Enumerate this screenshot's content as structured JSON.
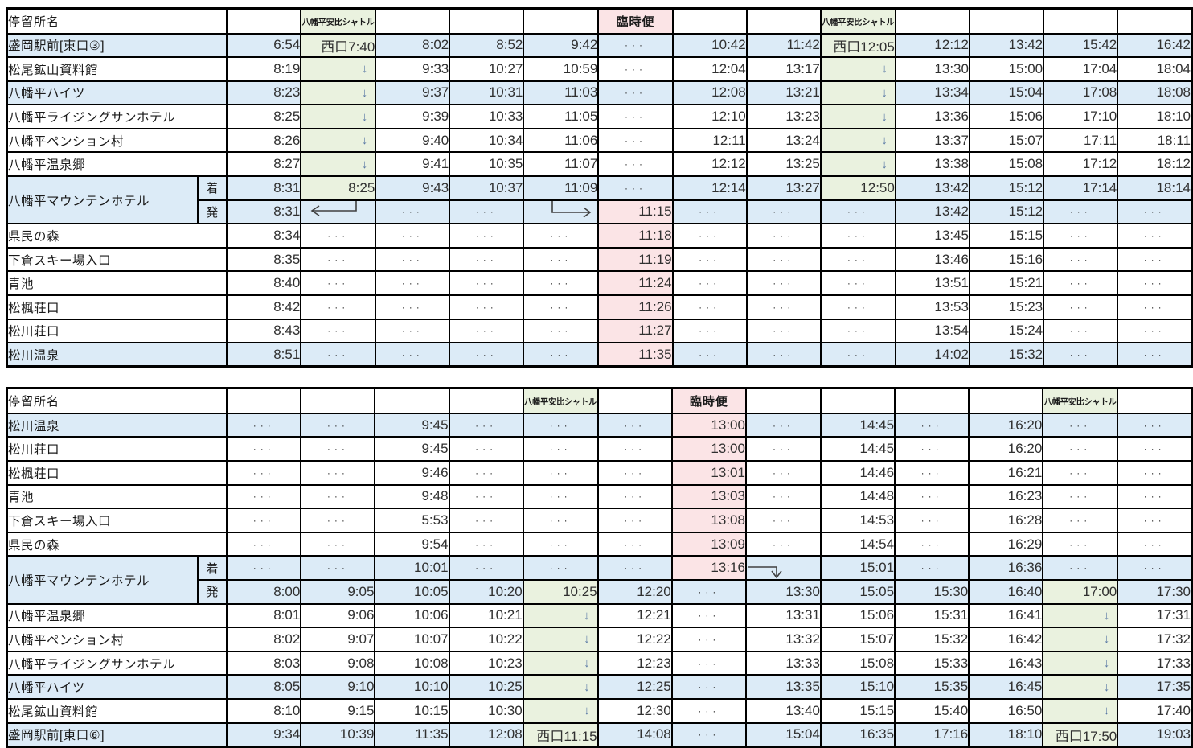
{
  "page": {
    "description": "bus-timetable"
  },
  "colors": {
    "row_blue": "#DCEBF7",
    "shuttle_green": "#EAF2DF",
    "extra_pink": "#FBE4E6",
    "grid_black": "#000000",
    "time_text": "#303030",
    "skip_arrow_blue": "#5B7AA6"
  },
  "labels": {
    "stop_header": "停留所名",
    "shuttle": "八幡平安比シャトル",
    "extra_service": "臨時便",
    "arrive": "着",
    "depart": "発",
    "no_service_dots": "・・・",
    "skip_arrow": "↓"
  },
  "tables": [
    {
      "name": "outbound-timetable",
      "stop_header": "停留所名",
      "headers": [
        {
          "text": "",
          "bg": ""
        },
        {
          "text": "八幡平安比シャトル",
          "bg": "green"
        },
        {
          "text": "",
          "bg": ""
        },
        {
          "text": "",
          "bg": ""
        },
        {
          "text": "",
          "bg": ""
        },
        {
          "text": "臨時便",
          "bg": "pink"
        },
        {
          "text": "",
          "bg": ""
        },
        {
          "text": "",
          "bg": ""
        },
        {
          "text": "八幡平安比シャトル",
          "bg": "green"
        },
        {
          "text": "",
          "bg": ""
        },
        {
          "text": "",
          "bg": ""
        },
        {
          "text": "",
          "bg": ""
        },
        {
          "text": "",
          "bg": ""
        }
      ],
      "rows": [
        {
          "label": "盛岡駅前[東口③]",
          "shade": "blue",
          "cells": [
            "6:54",
            {
              "v": "西口7:40",
              "bg": "green"
            },
            "8:02",
            "8:52",
            "9:42",
            "・・・",
            "10:42",
            "11:42",
            {
              "v": "西口12:05",
              "bg": "green"
            },
            "12:12",
            "13:42",
            "15:42",
            "16:42"
          ]
        },
        {
          "label": "松尾鉱山資料館",
          "shade": "white",
          "cells": [
            "8:19",
            {
              "v": "↓",
              "bg": "green"
            },
            "9:33",
            "10:27",
            "10:59",
            "・・・",
            "12:04",
            "13:17",
            {
              "v": "↓",
              "bg": "green"
            },
            "13:30",
            "15:00",
            "17:04",
            "18:04"
          ]
        },
        {
          "label": "八幡平ハイツ",
          "shade": "blue",
          "cells": [
            "8:23",
            {
              "v": "↓",
              "bg": "green"
            },
            "9:37",
            "10:31",
            "11:03",
            "・・・",
            "12:08",
            "13:21",
            {
              "v": "↓",
              "bg": "green"
            },
            "13:34",
            "15:04",
            "17:08",
            "18:08"
          ]
        },
        {
          "label": "八幡平ライジングサンホテル",
          "shade": "white",
          "cells": [
            "8:25",
            {
              "v": "↓",
              "bg": "green"
            },
            "9:39",
            "10:33",
            "11:05",
            "・・・",
            "12:10",
            "13:23",
            {
              "v": "↓",
              "bg": "green"
            },
            "13:36",
            "15:06",
            "17:10",
            "18:10"
          ]
        },
        {
          "label": "八幡平ペンション村",
          "shade": "white",
          "cells": [
            "8:26",
            {
              "v": "↓",
              "bg": "green"
            },
            "9:40",
            "10:34",
            "11:06",
            "・・・",
            "12:11",
            "13:24",
            {
              "v": "↓",
              "bg": "green"
            },
            "13:37",
            "15:07",
            "17:11",
            "18:11"
          ]
        },
        {
          "label": "八幡平温泉郷",
          "shade": "white",
          "cells": [
            "8:27",
            {
              "v": "↓",
              "bg": "green"
            },
            "9:41",
            "10:35",
            "11:07",
            "・・・",
            "12:12",
            "13:25",
            {
              "v": "↓",
              "bg": "green"
            },
            "13:38",
            "15:08",
            "17:12",
            "18:12"
          ]
        },
        {
          "label": "八幡平マウンテンホテル",
          "sub": "着",
          "hotel": "start",
          "shade": "blue",
          "cells": [
            "8:31",
            {
              "v": "8:25",
              "bg": "green"
            },
            "9:43",
            "10:37",
            "11:09",
            "・・・",
            "12:14",
            "13:27",
            {
              "v": "12:50",
              "bg": "green"
            },
            "13:42",
            "15:12",
            "17:14",
            "18:14"
          ]
        },
        {
          "sub": "発",
          "hotel": "cont",
          "shade": "blue",
          "cells": [
            "8:31",
            {
              "icon": "transfer-arrow-left"
            },
            "・・・",
            "・・・",
            {
              "icon": "transfer-arrow-right"
            },
            {
              "v": "11:15",
              "bg": "pink"
            },
            "・・・",
            "・・・",
            "・・・",
            "13:42",
            "15:12",
            "・・・",
            "・・・"
          ]
        },
        {
          "label": "県民の森",
          "shade": "white",
          "cells": [
            "8:34",
            "・・・",
            "・・・",
            "・・・",
            "・・・",
            {
              "v": "11:18",
              "bg": "pink"
            },
            "・・・",
            "・・・",
            "・・・",
            "13:45",
            "15:15",
            "・・・",
            "・・・"
          ]
        },
        {
          "label": "下倉スキー場入口",
          "shade": "white",
          "cells": [
            "8:35",
            "・・・",
            "・・・",
            "・・・",
            "・・・",
            {
              "v": "11:19",
              "bg": "pink"
            },
            "・・・",
            "・・・",
            "・・・",
            "13:46",
            "15:16",
            "・・・",
            "・・・"
          ]
        },
        {
          "label": "青池",
          "shade": "white",
          "cells": [
            "8:40",
            "・・・",
            "・・・",
            "・・・",
            "・・・",
            {
              "v": "11:24",
              "bg": "pink"
            },
            "・・・",
            "・・・",
            "・・・",
            "13:51",
            "15:21",
            "・・・",
            "・・・"
          ]
        },
        {
          "label": "松楓荘口",
          "shade": "white",
          "cells": [
            "8:42",
            "・・・",
            "・・・",
            "・・・",
            "・・・",
            {
              "v": "11:26",
              "bg": "pink"
            },
            "・・・",
            "・・・",
            "・・・",
            "13:53",
            "15:23",
            "・・・",
            "・・・"
          ]
        },
        {
          "label": "松川荘口",
          "shade": "white",
          "cells": [
            "8:43",
            "・・・",
            "・・・",
            "・・・",
            "・・・",
            {
              "v": "11:27",
              "bg": "pink"
            },
            "・・・",
            "・・・",
            "・・・",
            "13:54",
            "15:24",
            "・・・",
            "・・・"
          ]
        },
        {
          "label": "松川温泉",
          "shade": "blue",
          "cells": [
            "8:51",
            "・・・",
            "・・・",
            "・・・",
            "・・・",
            {
              "v": "11:35",
              "bg": "pink"
            },
            "・・・",
            "・・・",
            "・・・",
            "14:02",
            "15:32",
            "・・・",
            "・・・"
          ]
        }
      ]
    },
    {
      "name": "return-timetable",
      "stop_header": "停留所名",
      "headers": [
        {
          "text": "",
          "bg": ""
        },
        {
          "text": "",
          "bg": ""
        },
        {
          "text": "",
          "bg": ""
        },
        {
          "text": "",
          "bg": ""
        },
        {
          "text": "八幡平安比シャトル",
          "bg": "green"
        },
        {
          "text": "",
          "bg": ""
        },
        {
          "text": "臨時便",
          "bg": "pink"
        },
        {
          "text": "",
          "bg": ""
        },
        {
          "text": "",
          "bg": ""
        },
        {
          "text": "",
          "bg": ""
        },
        {
          "text": "",
          "bg": ""
        },
        {
          "text": "八幡平安比シャトル",
          "bg": "green"
        },
        {
          "text": "",
          "bg": ""
        }
      ],
      "rows": [
        {
          "label": "松川温泉",
          "shade": "blue",
          "cells": [
            "・・・",
            "・・・",
            "9:45",
            "・・・",
            "・・・",
            "・・・",
            {
              "v": "13:00",
              "bg": "pink"
            },
            "・・・",
            "14:45",
            "・・・",
            "16:20",
            "・・・",
            "・・・"
          ]
        },
        {
          "label": "松川荘口",
          "shade": "white",
          "cells": [
            "・・・",
            "・・・",
            "9:45",
            "・・・",
            "・・・",
            "・・・",
            {
              "v": "13:00",
              "bg": "pink"
            },
            "・・・",
            "14:45",
            "・・・",
            "16:20",
            "・・・",
            "・・・"
          ]
        },
        {
          "label": "松楓荘口",
          "shade": "white",
          "cells": [
            "・・・",
            "・・・",
            "9:46",
            "・・・",
            "・・・",
            "・・・",
            {
              "v": "13:01",
              "bg": "pink"
            },
            "・・・",
            "14:46",
            "・・・",
            "16:21",
            "・・・",
            "・・・"
          ]
        },
        {
          "label": "青池",
          "shade": "white",
          "cells": [
            "・・・",
            "・・・",
            "9:48",
            "・・・",
            "・・・",
            "・・・",
            {
              "v": "13:03",
              "bg": "pink"
            },
            "・・・",
            "14:48",
            "・・・",
            "16:23",
            "・・・",
            "・・・"
          ]
        },
        {
          "label": "下倉スキー場入口",
          "shade": "white",
          "cells": [
            "・・・",
            "・・・",
            "5:53",
            "・・・",
            "・・・",
            "・・・",
            {
              "v": "13:08",
              "bg": "pink"
            },
            "・・・",
            "14:53",
            "・・・",
            "16:28",
            "・・・",
            "・・・"
          ]
        },
        {
          "label": "県民の森",
          "shade": "white",
          "cells": [
            "・・・",
            "・・・",
            "9:54",
            "・・・",
            "・・・",
            "・・・",
            {
              "v": "13:09",
              "bg": "pink"
            },
            "・・・",
            "14:54",
            "・・・",
            "16:29",
            "・・・",
            "・・・"
          ]
        },
        {
          "label": "八幡平マウンテンホテル",
          "sub": "着",
          "hotel": "start",
          "shade": "blue",
          "cells": [
            "・・・",
            "・・・",
            "10:01",
            "・・・",
            "・・・",
            "・・・",
            {
              "v": "13:16",
              "bg": "pink"
            },
            {
              "icon": "transfer-arrow-down"
            },
            "15:01",
            "・・・",
            "16:36",
            "・・・",
            "・・・"
          ]
        },
        {
          "sub": "発",
          "hotel": "cont",
          "shade": "blue",
          "cells": [
            "8:00",
            "9:05",
            "10:05",
            "10:20",
            {
              "v": "10:25",
              "bg": "green"
            },
            "12:20",
            "・・・",
            "13:30",
            "15:05",
            "15:30",
            "16:40",
            {
              "v": "17:00",
              "bg": "green"
            },
            "17:30"
          ]
        },
        {
          "label": "八幡平温泉郷",
          "shade": "white",
          "cells": [
            "8:01",
            "9:06",
            "10:06",
            "10:21",
            {
              "v": "↓",
              "bg": "green"
            },
            "12:21",
            "・・・",
            "13:31",
            "15:06",
            "15:31",
            "16:41",
            {
              "v": "↓",
              "bg": "green"
            },
            "17:31"
          ]
        },
        {
          "label": "八幡平ペンション村",
          "shade": "white",
          "cells": [
            "8:02",
            "9:07",
            "10:07",
            "10:22",
            {
              "v": "↓",
              "bg": "green"
            },
            "12:22",
            "・・・",
            "13:32",
            "15:07",
            "15:32",
            "16:42",
            {
              "v": "↓",
              "bg": "green"
            },
            "17:32"
          ]
        },
        {
          "label": "八幡平ライジングサンホテル",
          "shade": "white",
          "cells": [
            "8:03",
            "9:08",
            "10:08",
            "10:23",
            {
              "v": "↓",
              "bg": "green"
            },
            "12:23",
            "・・・",
            "13:33",
            "15:08",
            "15:33",
            "16:43",
            {
              "v": "↓",
              "bg": "green"
            },
            "17:33"
          ]
        },
        {
          "label": "八幡平ハイツ",
          "shade": "blue",
          "cells": [
            "8:05",
            "9:10",
            "10:10",
            "10:25",
            {
              "v": "↓",
              "bg": "green"
            },
            "12:25",
            "・・・",
            "13:35",
            "15:10",
            "15:35",
            "16:45",
            {
              "v": "↓",
              "bg": "green"
            },
            "17:35"
          ]
        },
        {
          "label": "松尾鉱山資料館",
          "shade": "white",
          "cells": [
            "8:10",
            "9:15",
            "10:15",
            "10:30",
            {
              "v": "↓",
              "bg": "green"
            },
            "12:30",
            "・・・",
            "13:40",
            "15:15",
            "15:40",
            "16:50",
            {
              "v": "↓",
              "bg": "green"
            },
            "17:40"
          ]
        },
        {
          "label": "盛岡駅前[東口⑥]",
          "shade": "blue",
          "cells": [
            "9:34",
            "10:39",
            "11:35",
            "12:08",
            {
              "v": "西口11:15",
              "bg": "green"
            },
            "14:08",
            "・・・",
            "15:04",
            "16:35",
            "17:16",
            "18:10",
            {
              "v": "西口17:50",
              "bg": "green"
            },
            "19:03"
          ]
        }
      ]
    }
  ]
}
